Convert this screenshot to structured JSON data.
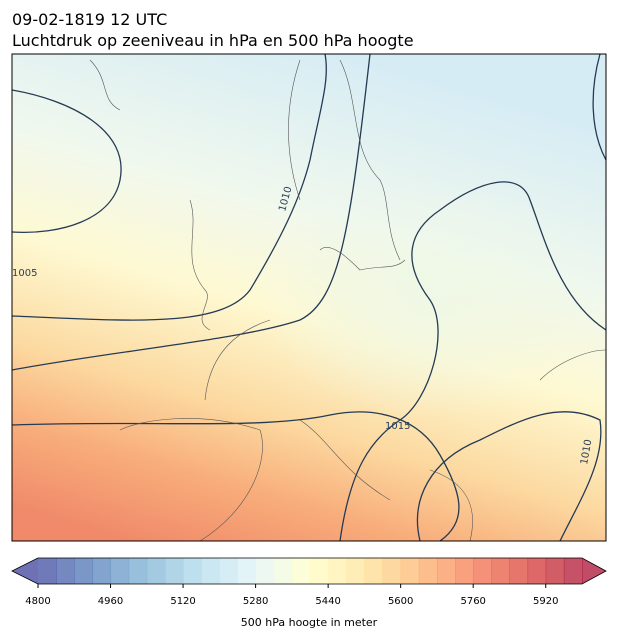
{
  "title": "09-02-1819 12 UTC",
  "subtitle": "Luchtdruk op zeeniveau in hPa en 500 hPa hoogte",
  "contour_labels": [
    "1005",
    "1010",
    "1015",
    "1010"
  ],
  "colorbar": {
    "label": "500 hPa hoogte in meter",
    "lim": [
      4800,
      6000
    ],
    "step": 40,
    "ticks": [
      4800,
      4960,
      5120,
      5280,
      5440,
      5600,
      5760,
      5920
    ]
  }
}
